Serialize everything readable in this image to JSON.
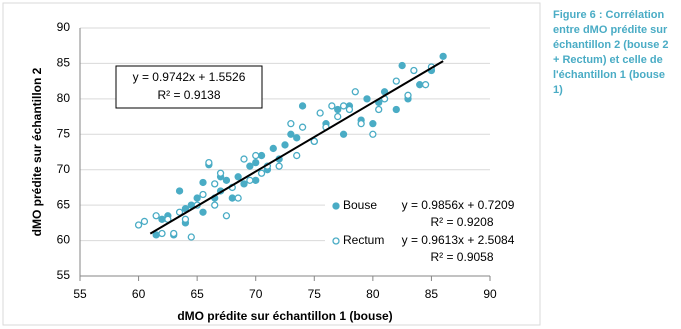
{
  "chart_data": {
    "type": "scatter",
    "x_label": "dMO prédite sur échantillon 1 (bouse)",
    "y_label": "dMO prédite sur échantillon 2",
    "xlim": [
      55,
      90
    ],
    "xticks": [
      55,
      60,
      65,
      70,
      75,
      80,
      85,
      90
    ],
    "ylim": [
      55,
      90
    ],
    "yticks": [
      55,
      60,
      65,
      70,
      75,
      80,
      85,
      90
    ],
    "grid": true,
    "legend_position": "lower right",
    "series": [
      {
        "name": "Bouse",
        "color": "#4aacc5",
        "hollow": false,
        "equation": "y = 0.9856x + 0.7209",
        "r2": "R² = 0.9208",
        "x": [
          61.5,
          62,
          62.5,
          63,
          63.5,
          64,
          64,
          64.5,
          65,
          65.5,
          65.5,
          66,
          66.5,
          67,
          67,
          67.5,
          68,
          68.5,
          69,
          69.5,
          70,
          70,
          70.5,
          71,
          71.5,
          72,
          72.5,
          73,
          73.5,
          74,
          75,
          76,
          77,
          77.5,
          78,
          79,
          79.5,
          80,
          80.5,
          81,
          82,
          82.5,
          83,
          84,
          85,
          86
        ],
        "values": [
          60.8,
          63,
          63.5,
          60.8,
          67,
          64.5,
          62.5,
          65,
          66,
          68.2,
          64,
          70.7,
          66,
          67,
          69,
          68.5,
          66,
          69,
          68,
          70.5,
          71,
          68.5,
          72,
          70,
          73,
          71.5,
          73.5,
          75,
          74.5,
          79,
          74,
          76.5,
          78.5,
          75,
          79,
          77,
          80,
          76.5,
          79.5,
          81,
          78.5,
          84.7,
          80,
          82,
          84,
          86
        ]
      },
      {
        "name": "Rectum",
        "color": "#4aacc5",
        "hollow": true,
        "equation": "y = 0.9613x + 2.5084",
        "r2": "R² = 0.9058",
        "x": [
          60,
          60.5,
          61.5,
          62,
          62.5,
          63,
          63.5,
          64,
          64.5,
          65,
          65.5,
          66,
          66.5,
          66.5,
          67,
          67.5,
          68,
          68.5,
          69,
          69.5,
          70,
          70.5,
          71,
          72,
          73,
          73.5,
          74,
          75,
          75.5,
          76,
          76.5,
          77,
          77.5,
          78,
          78.5,
          79,
          80,
          80.5,
          81,
          82,
          83,
          83.5,
          84.5,
          85
        ],
        "values": [
          62.2,
          62.7,
          63.5,
          61,
          63,
          61,
          64,
          63,
          60.5,
          65,
          66.5,
          71,
          65,
          68,
          69.5,
          63.5,
          67.5,
          66,
          71.5,
          68.5,
          72,
          69.5,
          70.5,
          70.5,
          76.5,
          72,
          76,
          74,
          78,
          76,
          79,
          77.5,
          79,
          78.5,
          81,
          76.5,
          75,
          78.5,
          80,
          82.5,
          80.5,
          84,
          82,
          84.5
        ]
      }
    ],
    "trendline": {
      "equation": "y = 0.9742x + 1.5526",
      "r2": "R² = 0.9138",
      "color": "#000000",
      "x": [
        61,
        86
      ],
      "y": [
        60.98,
        85.33
      ]
    },
    "caption": [
      "Figure 6 : Corrélation",
      "entre dMO prédite sur",
      "échantillon 2 (bouse 2",
      "+ Rectum) et celle de",
      "l'échantillon 1 (bouse",
      "1)"
    ]
  }
}
